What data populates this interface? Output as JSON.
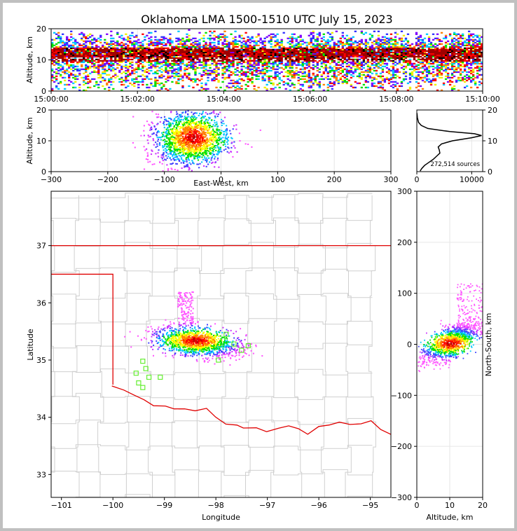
{
  "chart_data": {
    "title": "Oklahoma LMA 1500-1510 UTC July 15, 2023",
    "panels": [
      {
        "id": "time-height",
        "type": "heatmap",
        "ylabel": "Altitude, km",
        "xticks": [
          "15:00:00",
          "15:02:00",
          "15:04:00",
          "15:06:00",
          "15:08:00",
          "15:10:00"
        ],
        "yticks": [
          "0",
          "10",
          "20"
        ],
        "ylim": [
          0,
          20
        ]
      },
      {
        "id": "ew-altitude",
        "type": "heatmap",
        "xlabel": "East-West, km",
        "ylabel": "Altitude, km",
        "xticks": [
          "−300",
          "−200",
          "−100",
          "0",
          "100",
          "200",
          "300"
        ],
        "yticks": [
          "0",
          "10",
          "20"
        ],
        "xlim": [
          -300,
          300
        ],
        "ylim": [
          0,
          20
        ]
      },
      {
        "id": "altitude-histogram",
        "type": "line",
        "annotation": "272,514 sources",
        "xticks": [
          "0",
          "10000"
        ],
        "yticks": [
          "0",
          "10",
          "20"
        ],
        "xlim": [
          0,
          12000
        ],
        "ylim": [
          0,
          20
        ],
        "profile": [
          {
            "alt": 0.2,
            "count": 600
          },
          {
            "alt": 1.0,
            "count": 900
          },
          {
            "alt": 2.0,
            "count": 1400
          },
          {
            "alt": 3.0,
            "count": 2200
          },
          {
            "alt": 4.0,
            "count": 3000
          },
          {
            "alt": 5.0,
            "count": 3600
          },
          {
            "alt": 6.0,
            "count": 4200
          },
          {
            "alt": 7.0,
            "count": 4100
          },
          {
            "alt": 8.0,
            "count": 3900
          },
          {
            "alt": 9.0,
            "count": 4500
          },
          {
            "alt": 10.0,
            "count": 6500
          },
          {
            "alt": 11.0,
            "count": 10000
          },
          {
            "alt": 11.7,
            "count": 11800
          },
          {
            "alt": 12.3,
            "count": 10500
          },
          {
            "alt": 13.0,
            "count": 6000
          },
          {
            "alt": 14.0,
            "count": 2000
          },
          {
            "alt": 15.0,
            "count": 800
          },
          {
            "alt": 16.0,
            "count": 300
          },
          {
            "alt": 17.5,
            "count": 100
          },
          {
            "alt": 19.0,
            "count": 30
          }
        ]
      },
      {
        "id": "plan-view",
        "type": "scatter",
        "xlabel": "Longitude",
        "ylabel": "Latitude",
        "xticks": [
          "−101",
          "−100",
          "−99",
          "−98",
          "−97",
          "−96",
          "−95"
        ],
        "yticks": [
          "33",
          "34",
          "35",
          "36",
          "37"
        ],
        "xlim": [
          -101.2,
          -94.6
        ],
        "ylim": [
          32.6,
          37.95
        ],
        "stations": [
          {
            "lon": -99.42,
            "lat": 34.98
          },
          {
            "lon": -99.36,
            "lat": 34.85
          },
          {
            "lon": -99.55,
            "lat": 34.77
          },
          {
            "lon": -99.3,
            "lat": 34.7
          },
          {
            "lon": -99.5,
            "lat": 34.6
          },
          {
            "lon": -99.42,
            "lat": 34.52
          },
          {
            "lon": -99.08,
            "lat": 34.7
          },
          {
            "lon": -97.8,
            "lat": 35.45
          },
          {
            "lon": -97.65,
            "lat": 35.28
          },
          {
            "lon": -97.5,
            "lat": 35.17
          },
          {
            "lon": -97.37,
            "lat": 35.25
          },
          {
            "lon": -97.95,
            "lat": 35.0
          }
        ]
      },
      {
        "id": "altitude-ns",
        "type": "heatmap",
        "xlabel": "Altitude, km",
        "ylabel": "North-South, km",
        "xticks": [
          "0",
          "10",
          "20"
        ],
        "yticks": [
          "−300",
          "−200",
          "−100",
          "0",
          "100",
          "200",
          "300"
        ],
        "xlim": [
          0,
          20
        ],
        "ylim": [
          -300,
          300
        ]
      }
    ]
  }
}
